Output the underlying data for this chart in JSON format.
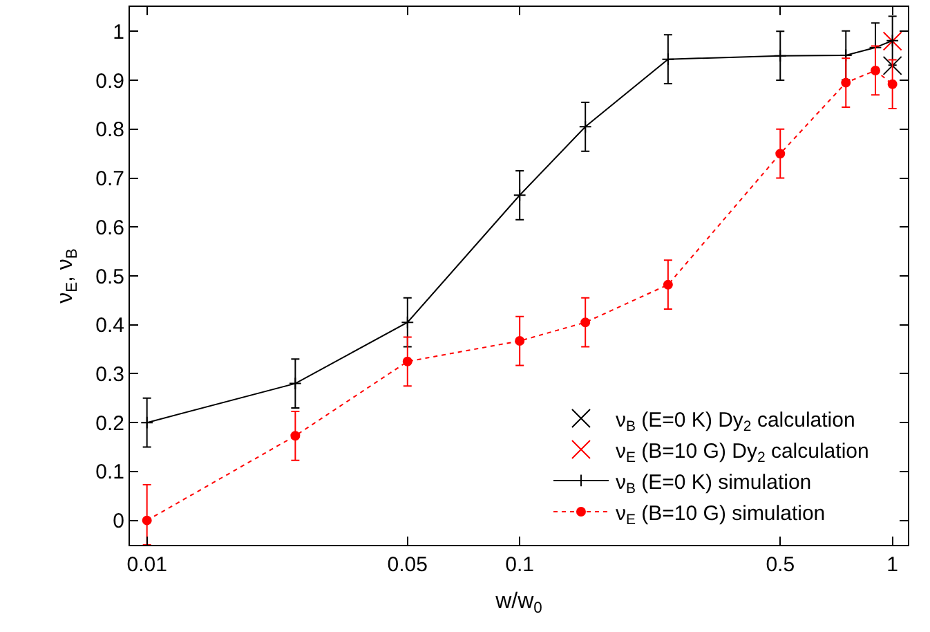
{
  "chart_data": {
    "type": "line",
    "xlabel": "w/w$_{0}$",
    "ylabel": "ν$_{E}$, ν$_{B}$",
    "log": "x",
    "xlim": [
      0.009,
      1.1
    ],
    "xticks": [
      0.01,
      0.05,
      0.1,
      0.5,
      1
    ],
    "ylim": [
      -0.05,
      1.05
    ],
    "yticks": [
      0,
      0.1,
      0.2,
      0.3,
      0.4,
      0.5,
      0.6,
      0.7,
      0.8,
      0.9,
      1
    ],
    "grid": false,
    "legend": "bottom right",
    "series": [
      {
        "name": "ν$_{B}$ (E=0 K) Dy$_{2}$ calculation",
        "type": "scatter",
        "marker": "cross",
        "color": "#000000",
        "x": [
          1
        ],
        "values": [
          0.93
        ]
      },
      {
        "name": "ν$_{E}$ (B=10 G) Dy$_{2}$ calculation",
        "type": "scatter",
        "marker": "cross",
        "color": "#ff0000",
        "x": [
          1
        ],
        "values": [
          0.98
        ]
      },
      {
        "name": "ν$_{B}$ (E=0 K) simulation",
        "marker": "cross",
        "line_style": "solid",
        "color": "#000000",
        "x": [
          0.01,
          0.025,
          0.05,
          0.1,
          0.15,
          0.25,
          0.5,
          0.75,
          0.9,
          1
        ],
        "values": [
          0.2,
          0.28,
          0.405,
          0.665,
          0.805,
          0.943,
          0.95,
          0.951,
          0.967,
          0.981
        ],
        "errors": [
          0.05,
          0.05,
          0.05,
          0.05,
          0.05,
          0.05,
          0.05,
          0.05,
          0.05,
          0.05
        ]
      },
      {
        "name": "ν$_{E}$ (B=10 G) simulation",
        "marker": "circle",
        "line_style": "dotted",
        "color": "#ff0000",
        "x": [
          0.01,
          0.025,
          0.05,
          0.1,
          0.15,
          0.25,
          0.5,
          0.75,
          0.9,
          1
        ],
        "values": [
          0,
          0.173,
          0.325,
          0.367,
          0.405,
          0.482,
          0.75,
          0.895,
          0.92,
          0.892
        ],
        "errors": [
          [
            -0.05,
            0.073
          ],
          0.05,
          0.05,
          0.05,
          0.05,
          0.05,
          0.05,
          0.05,
          0.05,
          0.05
        ]
      }
    ]
  }
}
